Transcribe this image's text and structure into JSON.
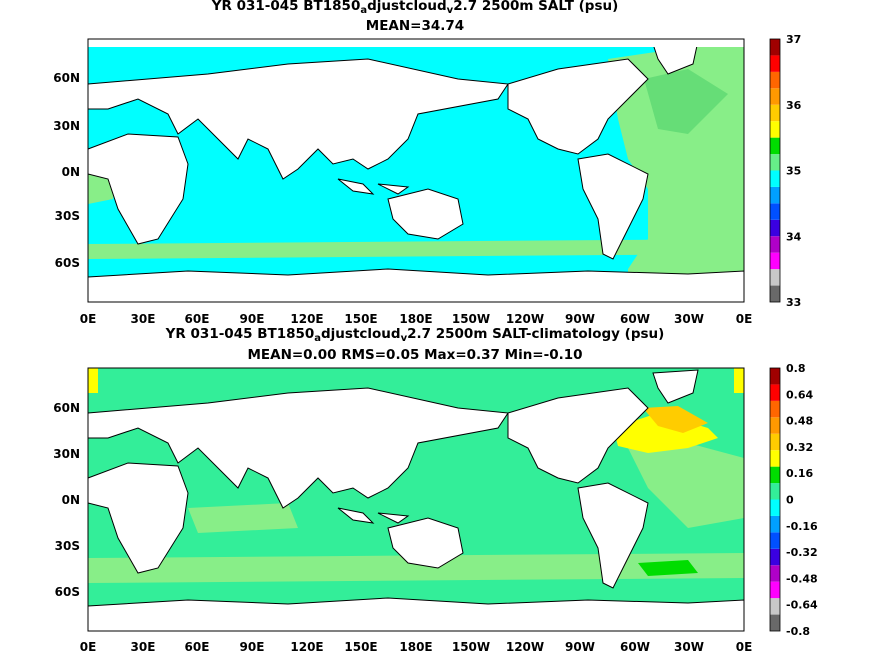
{
  "top": {
    "title_a": "YR 031-045 BT1850",
    "title_sub1": "a",
    "title_b": "djustcloud",
    "title_sub2": "v",
    "title_c": "2.7 2500m SALT (psu)",
    "stats": "MEAN=34.74",
    "colorbar": {
      "colors": [
        "#696969",
        "#c8c8c8",
        "#ff00ff",
        "#b000c8",
        "#3a00e0",
        "#0050ff",
        "#00a0ff",
        "#00ffff",
        "#66ee88",
        "#00dd00",
        "#ffff00",
        "#ffcc00",
        "#ff9900",
        "#ff6600",
        "#ff0000",
        "#a00000"
      ],
      "labels": [
        "33",
        "34",
        "35",
        "36",
        "37"
      ]
    }
  },
  "bottom": {
    "title_a": "YR 031-045 BT1850",
    "title_sub1": "a",
    "title_b": "djustcloud",
    "title_sub2": "v",
    "title_c": "2.7 2500m SALT-climatology (psu)",
    "stats": "MEAN=0.00   RMS=0.05   Max=0.37   Min=-0.10",
    "colorbar": {
      "colors": [
        "#696969",
        "#c8c8c8",
        "#ff00ff",
        "#b000c8",
        "#3a00e0",
        "#0050ff",
        "#00a0ff",
        "#00ffff",
        "#33ee99",
        "#00dd00",
        "#ffff00",
        "#ffcc00",
        "#ff9900",
        "#ff6600",
        "#ff0000",
        "#a00000"
      ],
      "labels": [
        "0.8",
        "0.64",
        "0.48",
        "0.32",
        "0.16",
        "0",
        "-0.16",
        "-0.32",
        "-0.48",
        "-0.64",
        "-0.8"
      ]
    }
  },
  "axes": {
    "lon_labels": [
      "0E",
      "30E",
      "60E",
      "90E",
      "120E",
      "150E",
      "180E",
      "150W",
      "120W",
      "90W",
      "60W",
      "30W",
      "0E"
    ],
    "lat_labels": [
      "60N",
      "30N",
      "0N",
      "30S",
      "60S"
    ]
  }
}
